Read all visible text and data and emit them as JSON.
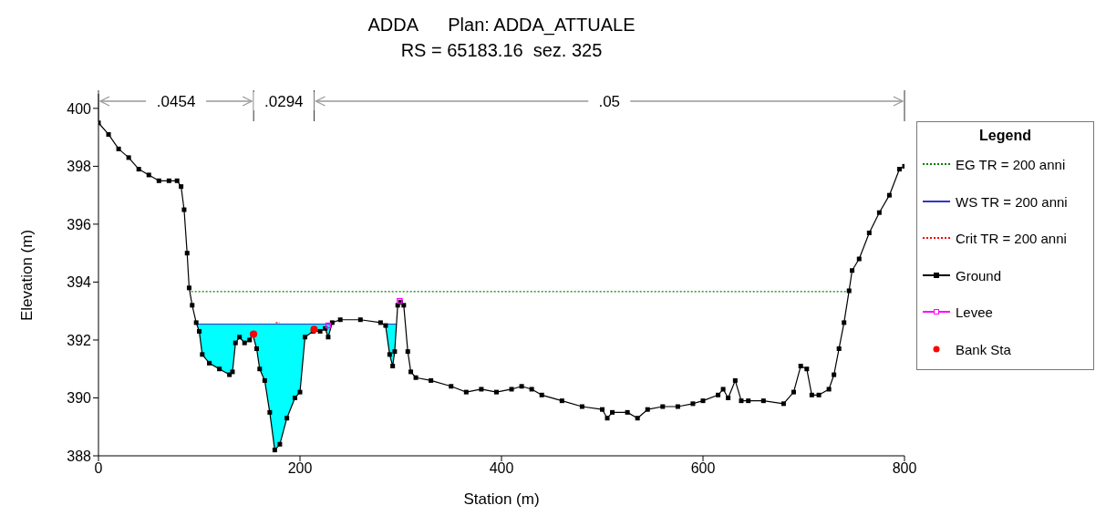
{
  "chart_data": {
    "type": "line",
    "title": "ADDA      Plan: ADDA_ATTUALE",
    "subtitle": "RS = 65183.16  sez. 325",
    "xlabel": "Station (m)",
    "ylabel": "Elevation (m)",
    "legend_title": "Legend",
    "legend": "right",
    "xlim": [
      0,
      800
    ],
    "xticks": [
      0,
      200,
      400,
      600,
      800
    ],
    "ylim": [
      388,
      400.5
    ],
    "yticks": [
      388,
      390,
      392,
      394,
      396,
      398,
      400
    ],
    "annotations": [
      ".0454",
      ".0294",
      ".05"
    ],
    "series": [
      {
        "name": "EG TR = 200 anni",
        "color": "#008000",
        "line_style": "dotted",
        "marker": "none",
        "x": [
          92,
          745
        ],
        "values": [
          393.67,
          393.67
        ]
      },
      {
        "name": "WS TR = 200 anni",
        "type": "area",
        "color": "#3333cc",
        "line_style": "solid",
        "marker": "none",
        "x": [
          97,
          100,
          103,
          110,
          120,
          130,
          133,
          136,
          140,
          145,
          150,
          153,
          157,
          160,
          165,
          170,
          175,
          180,
          187,
          195,
          200,
          205,
          213,
          220,
          225,
          228,
          232,
          260,
          285,
          289,
          292,
          294,
          296
        ],
        "values": [
          392.55,
          392.55,
          392.55,
          392.55,
          392.55,
          392.55,
          392.55,
          392.55,
          392.55,
          392.55,
          392.55,
          392.55,
          392.55,
          392.55,
          392.55,
          392.55,
          392.55,
          392.55,
          392.55,
          392.55,
          392.55,
          392.55,
          392.55,
          392.55,
          392.55,
          392.55,
          392.55,
          null,
          392.55,
          392.55,
          392.55,
          392.55,
          392.55
        ]
      },
      {
        "name": "Crit TR = 200 anni",
        "color": "#ff0000",
        "line_style": "dotted",
        "marker": "none",
        "x": [
          176,
          180
        ],
        "values": [
          392.6,
          392.6
        ]
      },
      {
        "name": "Ground",
        "color": "#000000",
        "line_style": "solid",
        "marker": "square",
        "x": [
          0,
          10,
          20,
          30,
          40,
          50,
          60,
          70,
          78,
          82,
          85,
          88,
          90,
          93,
          97,
          100,
          103,
          110,
          120,
          130,
          133,
          136,
          140,
          145,
          150,
          153,
          157,
          160,
          165,
          170,
          175,
          180,
          187,
          195,
          200,
          205,
          213,
          220,
          225,
          228,
          232,
          240,
          260,
          280,
          285,
          289,
          292,
          294,
          297,
          300,
          303,
          307,
          310,
          315,
          330,
          350,
          365,
          380,
          395,
          410,
          420,
          430,
          440,
          460,
          480,
          500,
          505,
          510,
          525,
          535,
          545,
          560,
          575,
          590,
          600,
          615,
          620,
          625,
          632,
          638,
          645,
          660,
          680,
          690,
          697,
          703,
          708,
          715,
          725,
          730,
          735,
          740,
          745,
          748,
          755,
          765,
          775,
          785,
          795,
          800
        ],
        "values": [
          399.5,
          399.1,
          398.6,
          398.3,
          397.9,
          397.7,
          397.5,
          397.5,
          397.5,
          397.3,
          396.5,
          395.0,
          393.8,
          393.2,
          392.6,
          392.3,
          391.5,
          391.2,
          391.0,
          390.8,
          390.9,
          391.9,
          392.1,
          391.9,
          392.0,
          392.2,
          391.7,
          391.0,
          390.6,
          389.5,
          388.2,
          388.4,
          389.3,
          390.0,
          390.2,
          392.1,
          392.3,
          392.3,
          392.4,
          392.1,
          392.6,
          392.7,
          392.7,
          392.6,
          392.5,
          391.5,
          391.1,
          391.6,
          393.2,
          393.3,
          393.2,
          391.6,
          390.9,
          390.7,
          390.6,
          390.4,
          390.2,
          390.3,
          390.2,
          390.3,
          390.4,
          390.3,
          390.1,
          389.9,
          389.7,
          389.6,
          389.3,
          389.5,
          389.5,
          389.3,
          389.6,
          389.7,
          389.7,
          389.8,
          389.9,
          390.1,
          390.3,
          390.0,
          390.6,
          389.9,
          389.9,
          389.9,
          389.8,
          390.2,
          391.1,
          391.0,
          390.1,
          390.1,
          390.3,
          390.8,
          391.7,
          392.6,
          393.7,
          394.4,
          394.8,
          395.7,
          396.4,
          397.0,
          397.9,
          398.0
        ]
      },
      {
        "name": "Levee",
        "type": "scatter",
        "color": "#ff00ff",
        "marker": "square",
        "x": [
          228,
          299
        ],
        "values": [
          392.5,
          393.35
        ]
      },
      {
        "name": "Bank Sta",
        "type": "scatter",
        "color": "#ff0000",
        "marker": "circle",
        "x": [
          154,
          214
        ],
        "values": [
          392.2,
          392.37
        ]
      }
    ]
  }
}
